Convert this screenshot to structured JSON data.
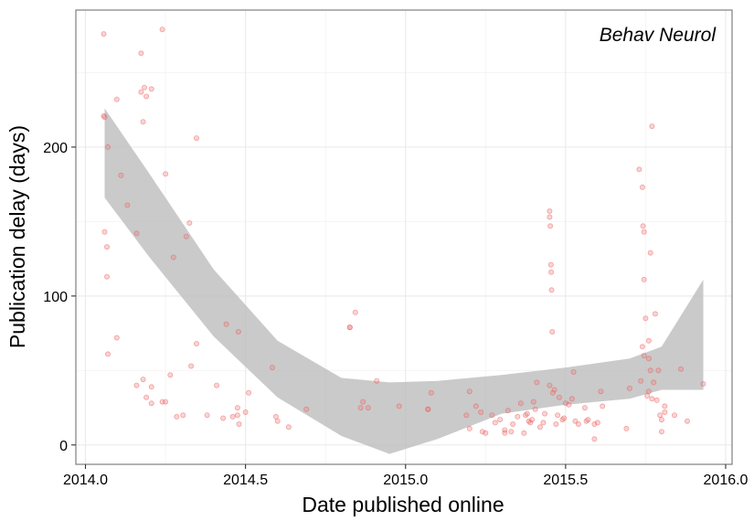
{
  "chart_data": {
    "type": "scatter",
    "annotation": "Behav Neurol",
    "xlabel": "Date published online",
    "ylabel": "Publication delay (days)",
    "xlim": [
      2013.97,
      2016.02
    ],
    "ylim": [
      -13,
      292
    ],
    "xticks": [
      2014.0,
      2014.5,
      2015.0,
      2015.5,
      2016.0
    ],
    "xtick_labels": [
      "2014.0",
      "2014.5",
      "2015.0",
      "2015.5",
      "2016.0"
    ],
    "yticks": [
      0,
      100,
      200
    ],
    "ytick_labels": [
      "0",
      "100",
      "200"
    ],
    "grid": true,
    "legend": "none",
    "colors": {
      "points": "#f08080",
      "points_stroke": "#e8494a",
      "ribbon": "#bdbdbd",
      "grid_major": "#ebebeb",
      "grid_minor": "#f5f5f5",
      "frame": "#7f7f7f"
    },
    "points": [
      [
        2014.057,
        276
      ],
      [
        2014.057,
        221
      ],
      [
        2014.06,
        220
      ],
      [
        2014.06,
        143
      ],
      [
        2014.067,
        133
      ],
      [
        2014.067,
        113
      ],
      [
        2014.07,
        200
      ],
      [
        2014.07,
        61
      ],
      [
        2014.098,
        232
      ],
      [
        2014.098,
        72
      ],
      [
        2014.111,
        181
      ],
      [
        2014.131,
        161
      ],
      [
        2014.16,
        142
      ],
      [
        2014.16,
        40
      ],
      [
        2014.174,
        263
      ],
      [
        2014.174,
        237
      ],
      [
        2014.18,
        217
      ],
      [
        2014.18,
        44
      ],
      [
        2014.184,
        240
      ],
      [
        2014.19,
        234
      ],
      [
        2014.19,
        32
      ],
      [
        2014.206,
        239
      ],
      [
        2014.206,
        28
      ],
      [
        2014.206,
        39
      ],
      [
        2014.24,
        279
      ],
      [
        2014.24,
        29
      ],
      [
        2014.25,
        182
      ],
      [
        2014.25,
        29
      ],
      [
        2014.265,
        47
      ],
      [
        2014.275,
        126
      ],
      [
        2014.285,
        19
      ],
      [
        2014.305,
        20
      ],
      [
        2014.315,
        140
      ],
      [
        2014.325,
        149
      ],
      [
        2014.33,
        53
      ],
      [
        2014.347,
        206
      ],
      [
        2014.347,
        68
      ],
      [
        2014.38,
        20
      ],
      [
        2014.41,
        40
      ],
      [
        2014.43,
        18
      ],
      [
        2014.44,
        81
      ],
      [
        2014.46,
        19
      ],
      [
        2014.475,
        25
      ],
      [
        2014.475,
        20
      ],
      [
        2014.478,
        76
      ],
      [
        2014.48,
        14
      ],
      [
        2014.5,
        22
      ],
      [
        2014.51,
        35
      ],
      [
        2014.584,
        52
      ],
      [
        2014.595,
        19
      ],
      [
        2014.6,
        16
      ],
      [
        2014.635,
        12
      ],
      [
        2014.69,
        24
      ],
      [
        2014.826,
        79
      ],
      [
        2014.826,
        79
      ],
      [
        2014.843,
        89
      ],
      [
        2014.86,
        25
      ],
      [
        2014.867,
        29
      ],
      [
        2014.883,
        25
      ],
      [
        2014.91,
        43
      ],
      [
        2014.98,
        26
      ],
      [
        2015.07,
        24
      ],
      [
        2015.07,
        24
      ],
      [
        2015.08,
        35
      ],
      [
        2015.19,
        20
      ],
      [
        2015.2,
        36
      ],
      [
        2015.2,
        11
      ],
      [
        2015.22,
        26
      ],
      [
        2015.235,
        22
      ],
      [
        2015.24,
        9
      ],
      [
        2015.25,
        8
      ],
      [
        2015.27,
        20
      ],
      [
        2015.28,
        15
      ],
      [
        2015.295,
        17
      ],
      [
        2015.31,
        10
      ],
      [
        2015.31,
        8
      ],
      [
        2015.32,
        23
      ],
      [
        2015.33,
        9
      ],
      [
        2015.335,
        14
      ],
      [
        2015.35,
        19
      ],
      [
        2015.36,
        28
      ],
      [
        2015.37,
        8
      ],
      [
        2015.375,
        20
      ],
      [
        2015.38,
        21
      ],
      [
        2015.385,
        16
      ],
      [
        2015.39,
        15
      ],
      [
        2015.395,
        17
      ],
      [
        2015.4,
        29
      ],
      [
        2015.405,
        24
      ],
      [
        2015.41,
        42
      ],
      [
        2015.42,
        12
      ],
      [
        2015.43,
        15
      ],
      [
        2015.435,
        21
      ],
      [
        2015.45,
        157
      ],
      [
        2015.45,
        153
      ],
      [
        2015.452,
        147
      ],
      [
        2015.454,
        121
      ],
      [
        2015.455,
        116
      ],
      [
        2015.456,
        104
      ],
      [
        2015.458,
        76
      ],
      [
        2015.45,
        40
      ],
      [
        2015.46,
        35
      ],
      [
        2015.465,
        37
      ],
      [
        2015.47,
        14
      ],
      [
        2015.475,
        20
      ],
      [
        2015.48,
        32
      ],
      [
        2015.49,
        17
      ],
      [
        2015.495,
        18
      ],
      [
        2015.5,
        28
      ],
      [
        2015.51,
        27
      ],
      [
        2015.52,
        31
      ],
      [
        2015.525,
        49
      ],
      [
        2015.53,
        16
      ],
      [
        2015.54,
        14
      ],
      [
        2015.56,
        25
      ],
      [
        2015.565,
        16
      ],
      [
        2015.57,
        17
      ],
      [
        2015.59,
        14
      ],
      [
        2015.6,
        15
      ],
      [
        2015.61,
        36
      ],
      [
        2015.615,
        26
      ],
      [
        2015.59,
        4
      ],
      [
        2015.69,
        11
      ],
      [
        2015.7,
        38
      ],
      [
        2015.73,
        185
      ],
      [
        2015.74,
        173
      ],
      [
        2015.742,
        147
      ],
      [
        2015.745,
        143
      ],
      [
        2015.745,
        111
      ],
      [
        2015.75,
        85
      ],
      [
        2015.74,
        66
      ],
      [
        2015.745,
        60
      ],
      [
        2015.76,
        58
      ],
      [
        2015.76,
        70
      ],
      [
        2015.765,
        129
      ],
      [
        2015.77,
        214
      ],
      [
        2015.735,
        43
      ],
      [
        2015.755,
        33
      ],
      [
        2015.76,
        36
      ],
      [
        2015.765,
        50
      ],
      [
        2015.77,
        31
      ],
      [
        2015.775,
        42
      ],
      [
        2015.78,
        88
      ],
      [
        2015.785,
        30
      ],
      [
        2015.79,
        50
      ],
      [
        2015.795,
        20
      ],
      [
        2015.8,
        17
      ],
      [
        2015.8,
        9
      ],
      [
        2015.81,
        26
      ],
      [
        2015.81,
        22
      ],
      [
        2015.84,
        20
      ],
      [
        2015.86,
        51
      ],
      [
        2015.88,
        16
      ],
      [
        2015.93,
        41
      ]
    ],
    "smooth": {
      "x": [
        2014.06,
        2014.2,
        2014.4,
        2014.6,
        2014.8,
        2014.95,
        2015.1,
        2015.3,
        2015.5,
        2015.7,
        2015.8,
        2015.93
      ],
      "upper": [
        226,
        182,
        118,
        70,
        45,
        42,
        43,
        47,
        52,
        58,
        66,
        111
      ],
      "lower": [
        166,
        126,
        73,
        32,
        6,
        -6,
        4,
        21,
        27,
        31,
        37,
        37
      ]
    }
  }
}
